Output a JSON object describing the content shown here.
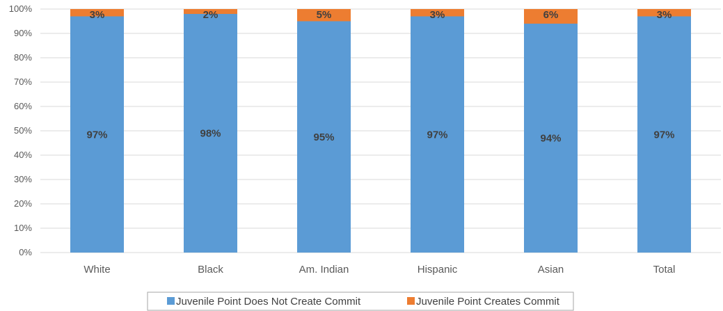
{
  "chart_data": {
    "type": "bar",
    "stacked": true,
    "categories": [
      "White",
      "Black",
      "Am. Indian",
      "Hispanic",
      "Asian",
      "Total"
    ],
    "series": [
      {
        "name": "Juvenile Point Does Not Create Commit",
        "values": [
          97,
          98,
          95,
          97,
          94,
          97
        ],
        "labels": [
          "97%",
          "98%",
          "95%",
          "97%",
          "94%",
          "97%"
        ],
        "color": "#5B9BD5"
      },
      {
        "name": "Juvenile Point Creates Commit",
        "values": [
          3,
          2,
          5,
          3,
          6,
          3
        ],
        "labels": [
          "3%",
          "2%",
          "5%",
          "3%",
          "6%",
          "3%"
        ],
        "color": "#ED7D31"
      }
    ],
    "ylim": [
      0,
      100
    ],
    "yticks": [
      "0%",
      "10%",
      "20%",
      "30%",
      "40%",
      "50%",
      "60%",
      "70%",
      "80%",
      "90%",
      "100%"
    ],
    "grid": true,
    "legend_position": "bottom",
    "title": "",
    "xlabel": "",
    "ylabel": ""
  },
  "colors": {
    "grid": "#D9D9D9",
    "legend_border": "#A6A6A6"
  }
}
